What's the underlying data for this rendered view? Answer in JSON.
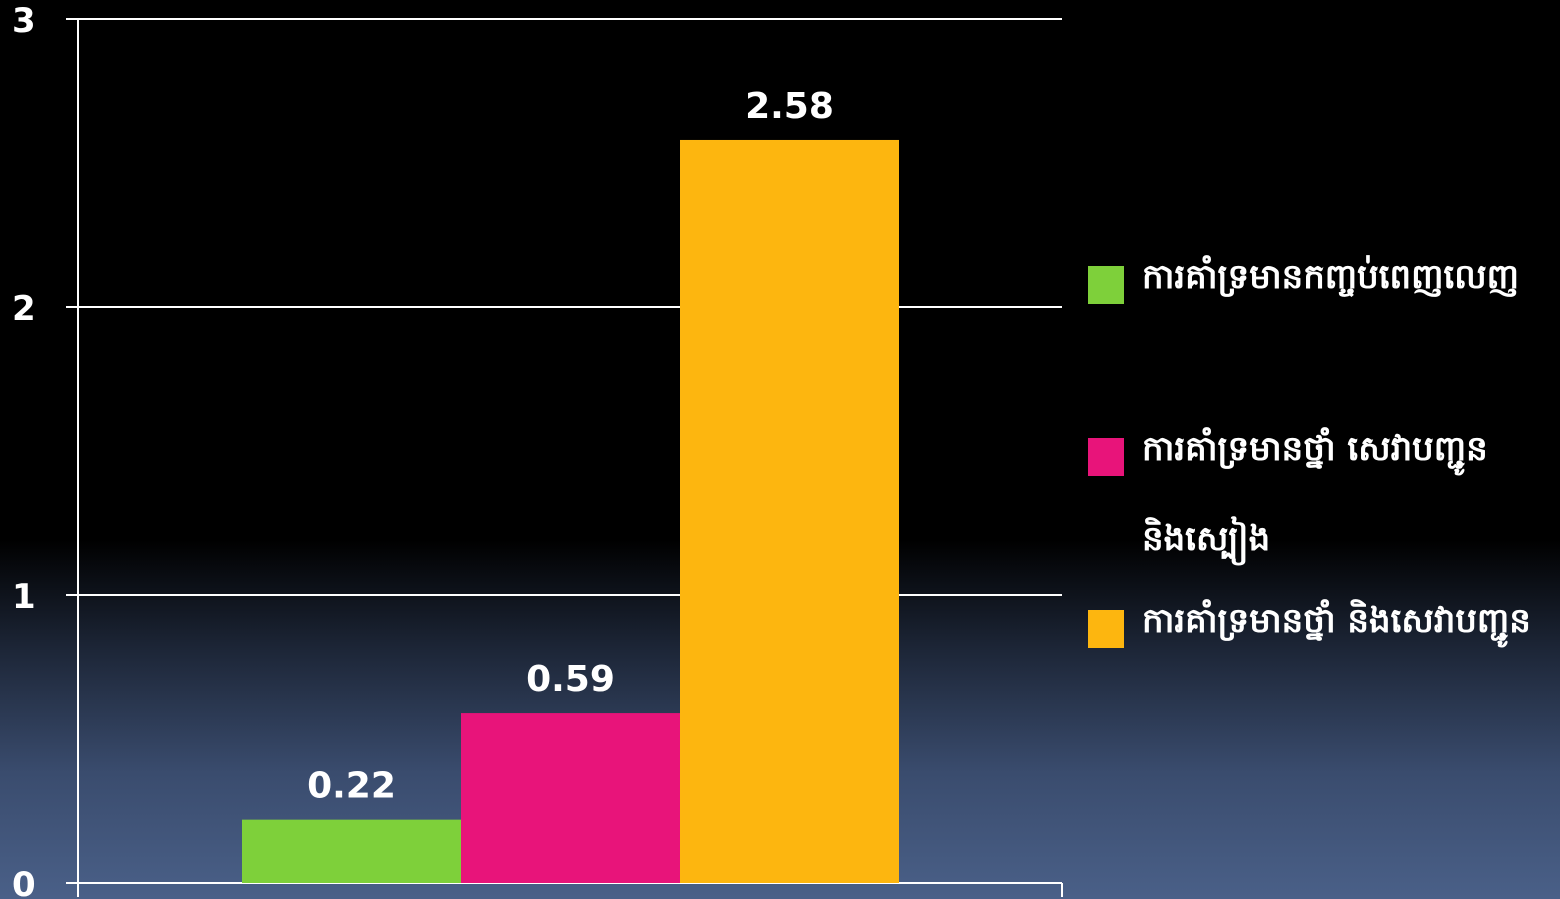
{
  "chart_data": {
    "type": "bar",
    "title": "",
    "xlabel": "",
    "ylabel": "",
    "ylim": [
      0,
      3
    ],
    "yticks": [
      0,
      1,
      2,
      3
    ],
    "grid": true,
    "legend_position": "right",
    "series": [
      {
        "name": "ការគាំទ្រមានកញ្ចប់ពេញលេញ",
        "value": 0.22,
        "label": "0.22",
        "color": "#7ed03a"
      },
      {
        "name": "ការគាំទ្រមានថ្នាំ សេវាបញ្ជូន និងស្បៀង",
        "value": 0.59,
        "label": "0.59",
        "color": "#e8147a"
      },
      {
        "name": "ការគាំទ្រមានថ្នាំ និងសេវាបញ្ជូន",
        "value": 2.58,
        "label": "2.58",
        "color": "#fdb60f"
      }
    ]
  }
}
